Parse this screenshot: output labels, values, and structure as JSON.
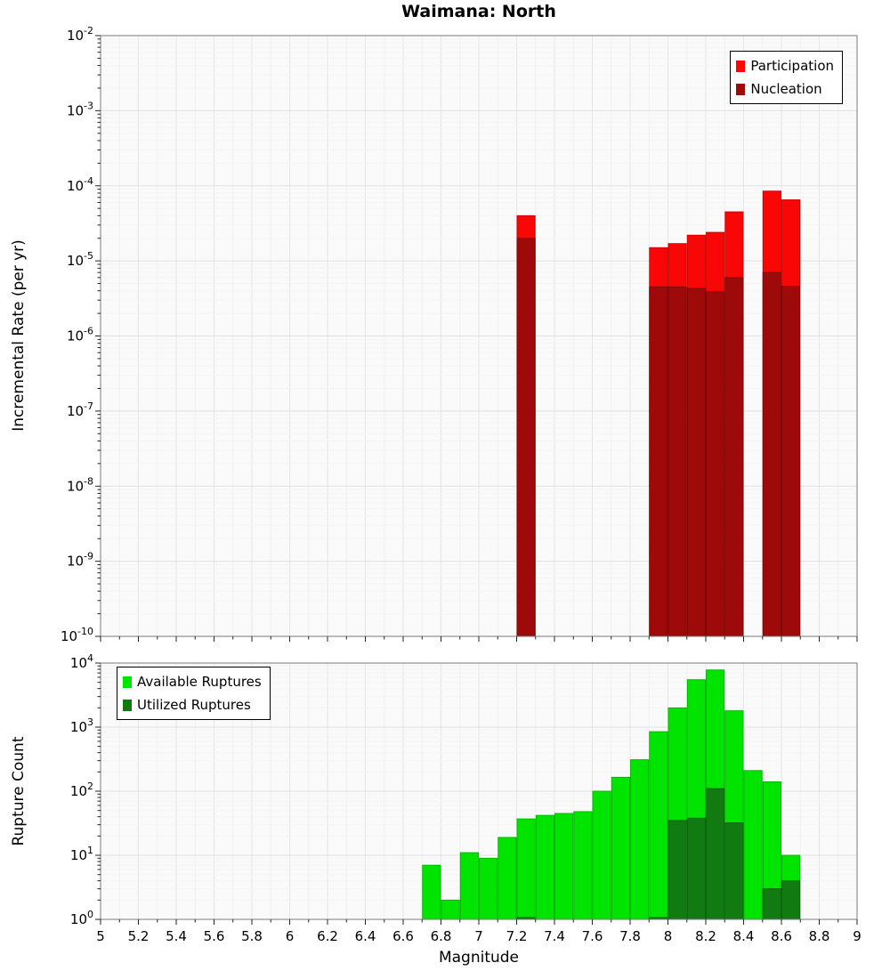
{
  "title": "Waimana: North",
  "chart_data": [
    {
      "name": "incremental-rate",
      "type": "bar",
      "title": "Waimana: North",
      "yscale": "log",
      "ylabel": "Incremental Rate (per yr)",
      "ylim": [
        1e-10,
        0.01
      ],
      "xlim": [
        5,
        9
      ],
      "bar_width": 0.1,
      "grid": true,
      "legend_position": "top-right",
      "series": [
        {
          "name": "Participation",
          "color": "#f90606",
          "x": [
            7.25,
            7.95,
            8.05,
            8.15,
            8.25,
            8.35,
            8.55,
            8.65
          ],
          "y": [
            4e-05,
            1.5e-05,
            1.7e-05,
            2.2e-05,
            2.4e-05,
            4.5e-05,
            8.5e-05,
            6.5e-05
          ]
        },
        {
          "name": "Nucleation",
          "color": "#9e0909",
          "x": [
            7.25,
            7.95,
            8.05,
            8.15,
            8.25,
            8.35,
            8.55,
            8.65
          ],
          "y": [
            2e-05,
            4.5e-06,
            4.5e-06,
            4.3e-06,
            3.9e-06,
            6e-06,
            7e-06,
            4.6e-06
          ]
        }
      ]
    },
    {
      "name": "rupture-count",
      "type": "bar",
      "yscale": "log",
      "ylabel": "Rupture Count",
      "xlabel": "Magnitude",
      "ylim": [
        1,
        10000
      ],
      "xlim": [
        5,
        9
      ],
      "bar_width": 0.1,
      "grid": true,
      "legend_position": "top-left",
      "x_ticks": {
        "step": 0.2,
        "labels": [
          "5",
          "5.2",
          "5.4",
          "5.6",
          "5.8",
          "6",
          "6.2",
          "6.4",
          "6.6",
          "6.8",
          "7",
          "7.2",
          "7.4",
          "7.6",
          "7.8",
          "8",
          "8.2",
          "8.4",
          "8.6",
          "8.8",
          "9"
        ]
      },
      "series": [
        {
          "name": "Available Ruptures",
          "color": "#00e400",
          "x": [
            6.75,
            6.85,
            6.95,
            7.05,
            7.15,
            7.25,
            7.35,
            7.45,
            7.55,
            7.65,
            7.75,
            7.85,
            7.95,
            8.05,
            8.15,
            8.25,
            8.35,
            8.45,
            8.55,
            8.65
          ],
          "y": [
            7,
            2,
            11,
            9,
            19,
            37,
            42,
            45,
            48,
            100,
            165,
            310,
            850,
            2000,
            5500,
            7800,
            1800,
            210,
            140,
            10
          ]
        },
        {
          "name": "Utilized Ruptures",
          "color": "#117a11",
          "x": [
            7.25,
            7.95,
            8.05,
            8.15,
            8.25,
            8.35,
            8.55,
            8.65
          ],
          "y": [
            1,
            1,
            35,
            38,
            110,
            32,
            3,
            4
          ]
        }
      ]
    }
  ]
}
